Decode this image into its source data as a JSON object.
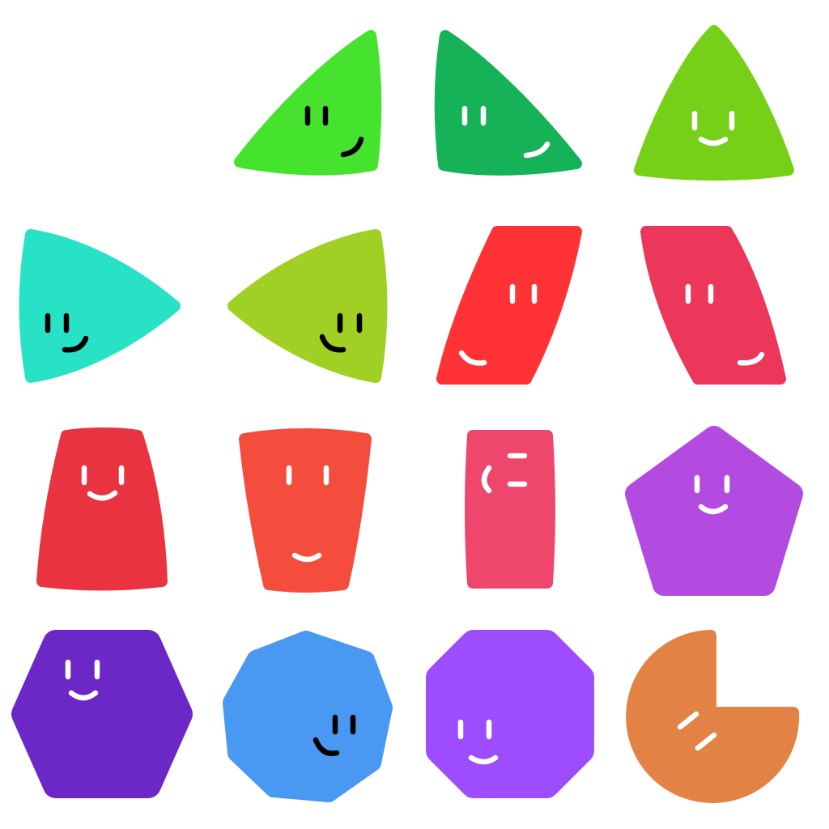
{
  "title": "",
  "shapes": [
    {
      "id": "triangle-right",
      "color": "#45E32E",
      "face": "#000000"
    },
    {
      "id": "triangle-left",
      "color": "#16B257",
      "face": "#ffffff"
    },
    {
      "id": "triangle-up",
      "color": "#76D017",
      "face": "#ffffff"
    },
    {
      "id": "triangle-pointing-right",
      "color": "#28E2C6",
      "face": "#000000"
    },
    {
      "id": "triangle-pointing-left",
      "color": "#9FD023",
      "face": "#000000"
    },
    {
      "id": "parallelogram",
      "color": "#FF3336",
      "face": "#ffffff"
    },
    {
      "id": "trapezoid-slanted",
      "color": "#EC365A",
      "face": "#ffffff"
    },
    {
      "id": "trapezoid-narrow-top",
      "color": "#E93340",
      "face": "#ffffff"
    },
    {
      "id": "trapezoid-wide-top",
      "color": "#F54D3D",
      "face": "#ffffff"
    },
    {
      "id": "rectangle",
      "color": "#EE476B",
      "face": "#ffffff"
    },
    {
      "id": "pentagon",
      "color": "#B44BE1",
      "face": "#ffffff"
    },
    {
      "id": "hexagon",
      "color": "#6C28C7",
      "face": "#ffffff"
    },
    {
      "id": "heptagon",
      "color": "#4998F1",
      "face": "#000000"
    },
    {
      "id": "octagon",
      "color": "#9D4DFF",
      "face": "#ffffff"
    },
    {
      "id": "three-quarter-circle",
      "color": "#E28244",
      "face": "#ffffff"
    }
  ]
}
